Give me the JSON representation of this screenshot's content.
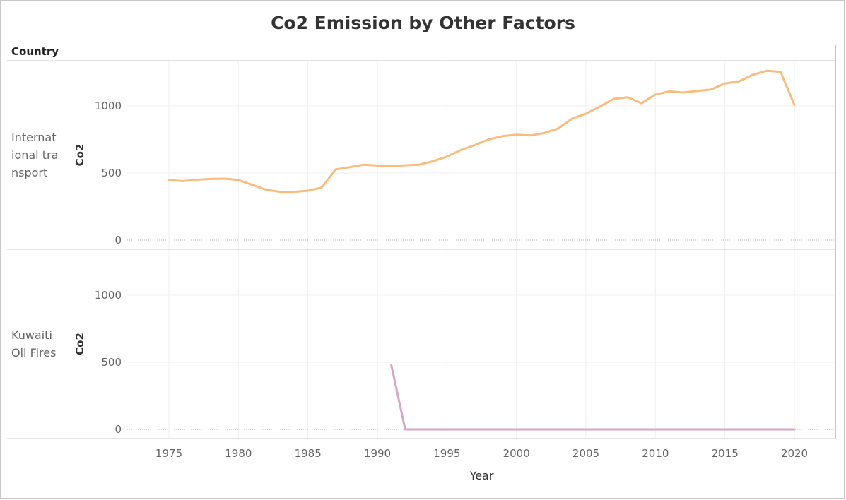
{
  "chart_data": {
    "type": "line",
    "title": "Co2 Emission by Other Factors",
    "row_header": "Country",
    "xlabel": "Year",
    "ylabel": "Co2",
    "xlim": [
      1972,
      2023
    ],
    "ylim": [
      0,
      1300
    ],
    "x_ticks": [
      1975,
      1980,
      1985,
      1990,
      1995,
      2000,
      2005,
      2010,
      2015,
      2020
    ],
    "y_ticks": [
      0,
      500,
      1000
    ],
    "grid": true,
    "panels": [
      {
        "label": "International transport",
        "label_lines": [
          "Internat",
          "ional tra",
          "nsport"
        ],
        "color": "#f8bc7c",
        "x": [
          1975,
          1976,
          1977,
          1978,
          1979,
          1980,
          1981,
          1982,
          1983,
          1984,
          1985,
          1986,
          1987,
          1988,
          1989,
          1990,
          1991,
          1992,
          1993,
          1994,
          1995,
          1996,
          1997,
          1998,
          1999,
          2000,
          2001,
          2002,
          2003,
          2004,
          2005,
          2006,
          2007,
          2008,
          2009,
          2010,
          2011,
          2012,
          2013,
          2014,
          2015,
          2016,
          2017,
          2018,
          2019,
          2020
        ],
        "y": [
          448,
          440,
          450,
          456,
          458,
          448,
          412,
          375,
          360,
          360,
          368,
          392,
          527,
          543,
          562,
          556,
          550,
          558,
          562,
          588,
          622,
          672,
          708,
          750,
          775,
          785,
          780,
          798,
          832,
          905,
          942,
          995,
          1052,
          1065,
          1020,
          1085,
          1108,
          1100,
          1112,
          1122,
          1168,
          1182,
          1232,
          1262,
          1255,
          1008
        ]
      },
      {
        "label": "Kuwaiti Oil Fires",
        "label_lines": [
          "Kuwaiti",
          "Oil Fires"
        ],
        "color": "#d4a6c8",
        "x": [
          1991,
          1992,
          1993,
          1994,
          1995,
          1996,
          1997,
          1998,
          1999,
          2000,
          2001,
          2002,
          2003,
          2004,
          2005,
          2006,
          2007,
          2008,
          2009,
          2010,
          2011,
          2012,
          2013,
          2014,
          2015,
          2016,
          2017,
          2018,
          2019,
          2020
        ],
        "y": [
          478,
          0,
          0,
          0,
          0,
          0,
          0,
          0,
          0,
          0,
          0,
          0,
          0,
          0,
          0,
          0,
          0,
          0,
          0,
          0,
          0,
          0,
          0,
          0,
          0,
          0,
          0,
          0,
          0,
          0
        ]
      }
    ]
  }
}
